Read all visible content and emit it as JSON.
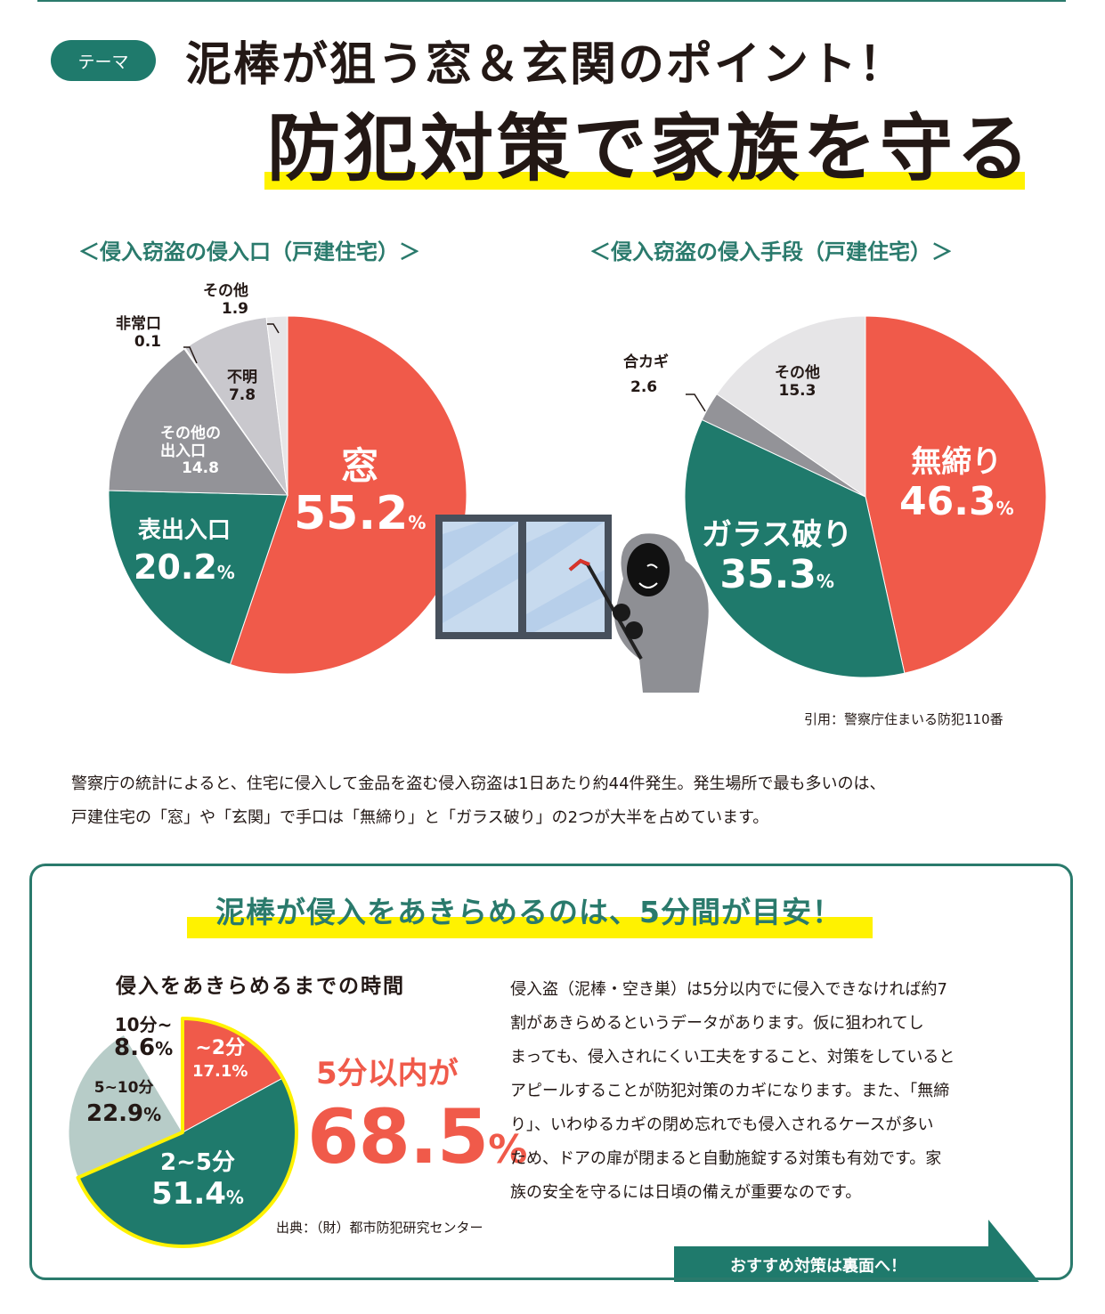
{
  "header": {
    "theme_badge": "テーマ",
    "title_line1": "泥棒が狙う窓＆玄関のポイント！",
    "title_line2": "防犯対策で家族を守る"
  },
  "colors": {
    "brand_green": "#1f7a6c",
    "accent_red": "#f05a4a",
    "highlight_yellow": "#fff200",
    "gray_dark": "#939398",
    "gray_mid": "#c9c8cd",
    "gray_light": "#e6e5e7",
    "teal_light": "#b7ccc8"
  },
  "chart_data": [
    {
      "type": "pie",
      "title": "＜侵入窃盗の侵入口（戸建住宅）＞",
      "unit": "%",
      "start_angle": "12 o'clock, clockwise",
      "slices": [
        {
          "label": "窓",
          "value": 55.2,
          "color": "#f05a4a"
        },
        {
          "label": "表出入口",
          "value": 20.2,
          "color": "#1f7a6c"
        },
        {
          "label": "その他の出入口",
          "value": 14.8,
          "color": "#939398"
        },
        {
          "label": "非常口",
          "value": 0.1,
          "color": "#c9c8cd"
        },
        {
          "label": "不明",
          "value": 7.8,
          "color": "#c9c8cd"
        },
        {
          "label": "その他",
          "value": 1.9,
          "color": "#e6e5e7"
        }
      ]
    },
    {
      "type": "pie",
      "title": "＜侵入窃盗の侵入手段（戸建住宅）＞",
      "unit": "%",
      "start_angle": "12 o'clock, clockwise",
      "slices": [
        {
          "label": "無締り",
          "value": 46.3,
          "color": "#f05a4a"
        },
        {
          "label": "ガラス破り",
          "value": 35.3,
          "color": "#1f7a6c"
        },
        {
          "label": "合カギ",
          "value": 2.6,
          "color": "#939398"
        },
        {
          "label": "その他",
          "value": 15.3,
          "color": "#e6e5e7"
        }
      ]
    },
    {
      "type": "pie",
      "title": "侵入をあきらめるまでの時間",
      "unit": "%",
      "start_angle": "12 o'clock, clockwise",
      "highlight": "~2分 and 2~5分 outlined in yellow (5分以内が68.5%)",
      "slices": [
        {
          "label": "~2分",
          "value": 17.1,
          "color": "#f05a4a"
        },
        {
          "label": "2~5分",
          "value": 51.4,
          "color": "#1f7a6c"
        },
        {
          "label": "5~10分",
          "value": 22.9,
          "color": "#b7ccc8"
        },
        {
          "label": "10分~",
          "value": 8.6,
          "color": "#ffffff"
        }
      ]
    }
  ],
  "chart1": {
    "title": "＜侵入窃盗の侵入口（戸建住宅）＞",
    "window": {
      "label": "窓",
      "value": "55.2",
      "unit": "%"
    },
    "front": {
      "label": "表出入口",
      "value": "20.2",
      "unit": "%"
    },
    "other_entrance": {
      "label1": "その他の",
      "label2": "出入口",
      "value": "14.8"
    },
    "unknown": {
      "label": "不明",
      "value": "7.8"
    },
    "emergency": {
      "label": "非常口",
      "value": "0.1"
    },
    "other": {
      "label": "その他",
      "value": "1.9"
    }
  },
  "chart2": {
    "title": "＜侵入窃盗の侵入手段（戸建住宅）＞",
    "unlocked": {
      "label": "無締り",
      "value": "46.3",
      "unit": "%"
    },
    "glass": {
      "label": "ガラス破り",
      "value": "35.3",
      "unit": "%"
    },
    "dupkey": {
      "label": "合カギ",
      "value": "2.6"
    },
    "other": {
      "label": "その他",
      "value": "15.3"
    }
  },
  "citation1": "引用：警察庁住まいる防犯110番",
  "intro_text": [
    "警察庁の統計によると、住宅に侵入して金品を盗む侵入窃盗は1日あたり約44件発生。発生場所で最も多いのは、",
    "戸建住宅の「窓」や「玄関」で手口は「無締り」と「ガラス破り」の2つが大半を占めています。"
  ],
  "box": {
    "heading": "泥棒が侵入をあきらめるのは、5分間が目安！",
    "chart_title": "侵入をあきらめるまでの時間",
    "slice_a": {
      "label": "~2分",
      "value": "17.1%"
    },
    "slice_b": {
      "label": "2~5分",
      "value": "51.4",
      "unit": "%"
    },
    "slice_c": {
      "label": "5~10分",
      "value": "22.9",
      "unit": "%"
    },
    "slice_d": {
      "label": "10分~",
      "value": "8.6",
      "unit": "%"
    },
    "callout_line1": "5分以内が",
    "callout_value": "68.5",
    "callout_unit": "%",
    "source": "出典：（財）都市防犯研究センター",
    "body": [
      "侵入盗（泥棒・空き巣）は5分以内でに侵入できなければ約7",
      "割があきらめるというデータがあります。仮に狙われてし",
      "まっても、侵入されにくい工夫をすること、対策をしていると",
      "アピールすることが防犯対策のカギになります。また、「無締",
      "り」、いわゆるカギの閉め忘れでも侵入されるケースが多い",
      "ため、ドアの扉が閉まると自動施錠する対策も有効です。家",
      "族の安全を守るには日頃の備えが重要なのです。"
    ],
    "cta_label": "おすすめ対策は裏面へ！"
  }
}
